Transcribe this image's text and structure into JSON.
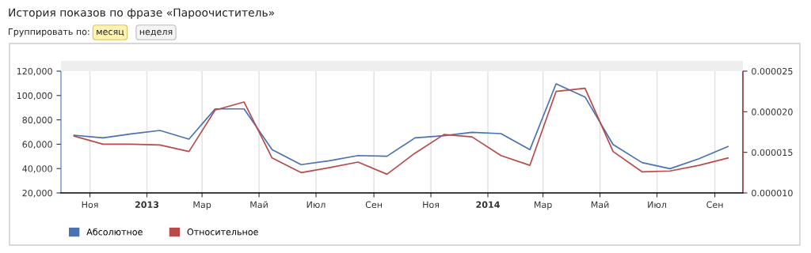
{
  "chart_data": {
    "type": "line",
    "title": "История показов по фразе «Пароочиститель»",
    "annotations": [
      "Группировать по:",
      "месяц",
      "неделя"
    ],
    "x": [
      "2012-10-15",
      "2012-11-15",
      "2012-12-15",
      "2013-01-15",
      "2013-02-15",
      "2013-03-15",
      "2013-04-15",
      "2013-05-15",
      "2013-06-15",
      "2013-07-15",
      "2013-08-15",
      "2013-09-15",
      "2013-10-15",
      "2013-11-15",
      "2013-12-15",
      "2014-01-15",
      "2014-02-15",
      "2014-03-15",
      "2014-04-15",
      "2014-05-15",
      "2014-06-15",
      "2014-07-15",
      "2014-08-15",
      "2014-09-15"
    ],
    "series": [
      {
        "name": "Абсолютное",
        "color": "#4a72b0",
        "values": [
          67400,
          65200,
          68500,
          71300,
          64200,
          89000,
          89000,
          55500,
          43200,
          46400,
          50700,
          50100,
          65200,
          67000,
          69800,
          68700,
          55500,
          109600,
          98800,
          59800,
          44900,
          39900,
          48100,
          58100
        ]
      },
      {
        "name": "Относительное",
        "color": "#b84a4a",
        "axis": "y2",
        "values": [
          1.7e-05,
          1.6e-05,
          1.6e-05,
          1.59e-05,
          1.51e-05,
          2.02e-05,
          2.12e-05,
          1.43e-05,
          1.25e-05,
          1.31e-05,
          1.38e-05,
          1.23e-05,
          1.49e-05,
          1.72e-05,
          1.69e-05,
          1.46e-05,
          1.34e-05,
          2.25e-05,
          2.29e-05,
          1.51e-05,
          1.26e-05,
          1.27e-05,
          1.34e-05,
          1.43e-05
        ]
      }
    ],
    "xlim": [
      "2012-10-01",
      "2014-10-01"
    ],
    "xticks": [
      {
        "value": "2012-11-01",
        "label": "Ноя"
      },
      {
        "value": "2013-01-01",
        "label": "2013"
      },
      {
        "value": "2013-03-01",
        "label": "Мар"
      },
      {
        "value": "2013-05-01",
        "label": "Май"
      },
      {
        "value": "2013-07-01",
        "label": "Июл"
      },
      {
        "value": "2013-09-01",
        "label": "Сен"
      },
      {
        "value": "2013-11-01",
        "label": "Ноя"
      },
      {
        "value": "2014-01-01",
        "label": "2014"
      },
      {
        "value": "2014-03-01",
        "label": "Мар"
      },
      {
        "value": "2014-05-01",
        "label": "Май"
      },
      {
        "value": "2014-07-01",
        "label": "Июл"
      },
      {
        "value": "2014-09-01",
        "label": "Сен"
      }
    ],
    "ylim": [
      20000,
      120000
    ],
    "yticks": [
      {
        "value": 20000,
        "label": "20,000"
      },
      {
        "value": 40000,
        "label": "40,000"
      },
      {
        "value": 60000,
        "label": "60,000"
      },
      {
        "value": 80000,
        "label": "80,000"
      },
      {
        "value": 100000,
        "label": "100,000"
      },
      {
        "value": 120000,
        "label": "120,000"
      }
    ],
    "y2lim": [
      1e-05,
      2.5e-05
    ],
    "y2ticks": [
      {
        "value": 1e-05,
        "label": "0.000010"
      },
      {
        "value": 1.5e-05,
        "label": "0.000015"
      },
      {
        "value": 2e-05,
        "label": "0.000020"
      },
      {
        "value": 2.5e-05,
        "label": "0.000025"
      }
    ],
    "grid": "x",
    "legend": "bottom left",
    "marker": "none",
    "line_style": "solid"
  }
}
